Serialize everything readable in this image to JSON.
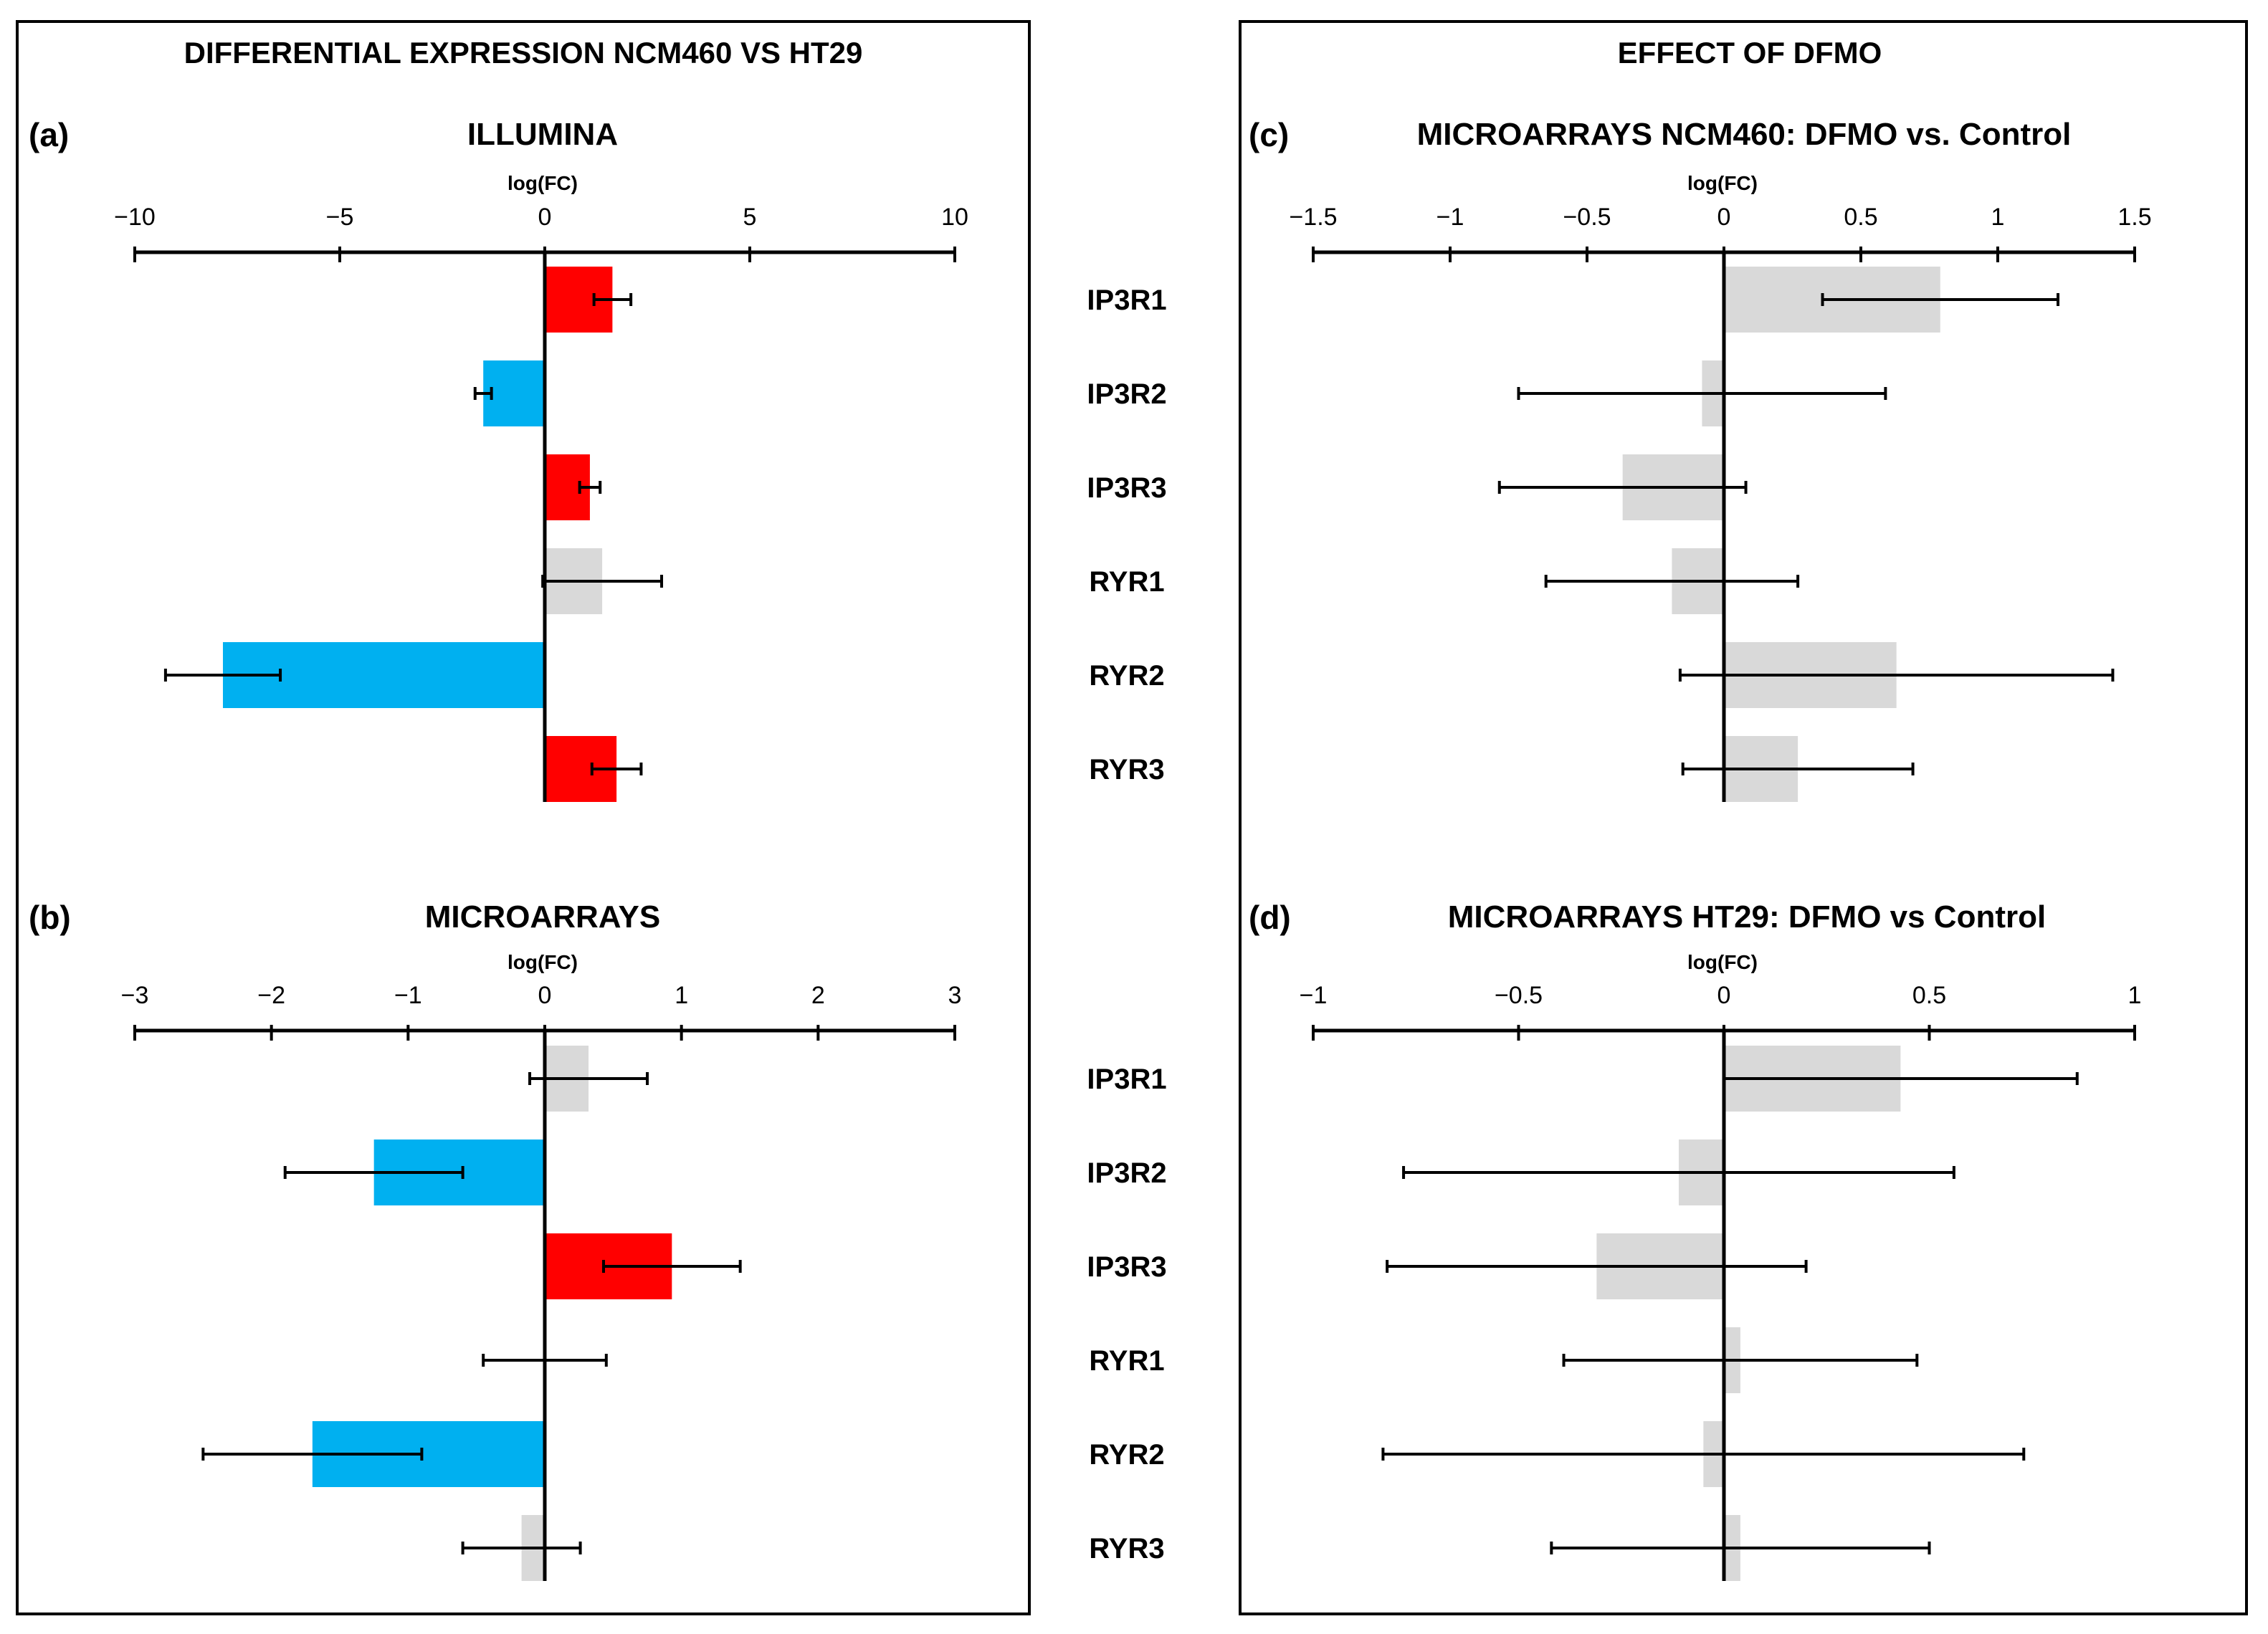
{
  "sections": [
    {
      "title": "DIFFERENTIAL EXPRESSION NCM460 VS HT29"
    },
    {
      "title": "EFFECT OF DFMO"
    }
  ],
  "gene_labels": [
    "IP3R1",
    "IP3R2",
    "IP3R3",
    "RYR1",
    "RYR2",
    "RYR3"
  ],
  "colors": {
    "up": "#ff0000",
    "down": "#00b0f0",
    "ns": "#d9d9d9"
  },
  "chart_data": [
    {
      "panel": "(a)",
      "title": "ILLUMINA",
      "type": "bar",
      "orientation": "horizontal",
      "xlabel": "log(FC)",
      "xlim": [
        -10,
        10
      ],
      "xticks": [
        "−10",
        "−5",
        "0",
        "5",
        "10"
      ],
      "xtick_values": [
        -10,
        -5,
        0,
        5,
        10
      ],
      "categories": [
        "IP3R1",
        "IP3R2",
        "IP3R3",
        "RYR1",
        "RYR2",
        "RYR3"
      ],
      "values": [
        1.65,
        -1.5,
        1.1,
        1.4,
        -7.85,
        1.75
      ],
      "error": [
        0.45,
        0.2,
        0.25,
        1.45,
        1.4,
        0.6
      ],
      "status": [
        "up",
        "down",
        "up",
        "ns",
        "down",
        "up"
      ]
    },
    {
      "panel": "(b)",
      "title": "MICROARRAYS",
      "type": "bar",
      "orientation": "horizontal",
      "xlabel": "log(FC)",
      "xlim": [
        -3,
        3
      ],
      "xticks": [
        "−3",
        "−2",
        "−1",
        "0",
        "1",
        "2",
        "3"
      ],
      "xtick_values": [
        -3,
        -2,
        -1,
        0,
        1,
        2,
        3
      ],
      "categories": [
        "IP3R1",
        "IP3R2",
        "IP3R3",
        "RYR1",
        "RYR2",
        "RYR3"
      ],
      "values": [
        0.32,
        -1.25,
        0.93,
        0.0,
        -1.7,
        -0.17
      ],
      "error": [
        0.43,
        0.65,
        0.5,
        0.45,
        0.8,
        0.43
      ],
      "status": [
        "ns",
        "down",
        "up",
        "ns",
        "down",
        "ns"
      ]
    },
    {
      "panel": "(c)",
      "title": "MICROARRAYS NCM460: DFMO vs. Control",
      "type": "bar",
      "orientation": "horizontal",
      "xlabel": "log(FC)",
      "xlim": [
        -1.5,
        1.5
      ],
      "xticks": [
        "−1.5",
        "−1",
        "−0.5",
        "0",
        "0.5",
        "1",
        "1.5"
      ],
      "xtick_values": [
        -1.5,
        -1,
        -0.5,
        0,
        0.5,
        1,
        1.5
      ],
      "categories": [
        "IP3R1",
        "IP3R2",
        "IP3R3",
        "RYR1",
        "RYR2",
        "RYR3"
      ],
      "values": [
        0.79,
        -0.08,
        -0.37,
        -0.19,
        0.63,
        0.27
      ],
      "error": [
        0.43,
        0.67,
        0.45,
        0.46,
        0.79,
        0.42
      ],
      "status": [
        "ns",
        "ns",
        "ns",
        "ns",
        "ns",
        "ns"
      ]
    },
    {
      "panel": "(d)",
      "title": "MICROARRAYS HT29: DFMO vs Control",
      "type": "bar",
      "orientation": "horizontal",
      "xlabel": "log(FC)",
      "xlim": [
        -1,
        1
      ],
      "xticks": [
        "−1",
        "−0.5",
        "0",
        "0.5",
        "1"
      ],
      "xtick_values": [
        -1,
        -0.5,
        0,
        0.5,
        1
      ],
      "categories": [
        "IP3R1",
        "IP3R2",
        "IP3R3",
        "RYR1",
        "RYR2",
        "RYR3"
      ],
      "values": [
        0.43,
        -0.11,
        -0.31,
        0.04,
        -0.05,
        0.04
      ],
      "error": [
        0.43,
        0.67,
        0.51,
        0.43,
        0.78,
        0.46
      ],
      "status": [
        "ns",
        "ns",
        "ns",
        "ns",
        "ns",
        "ns"
      ]
    }
  ]
}
